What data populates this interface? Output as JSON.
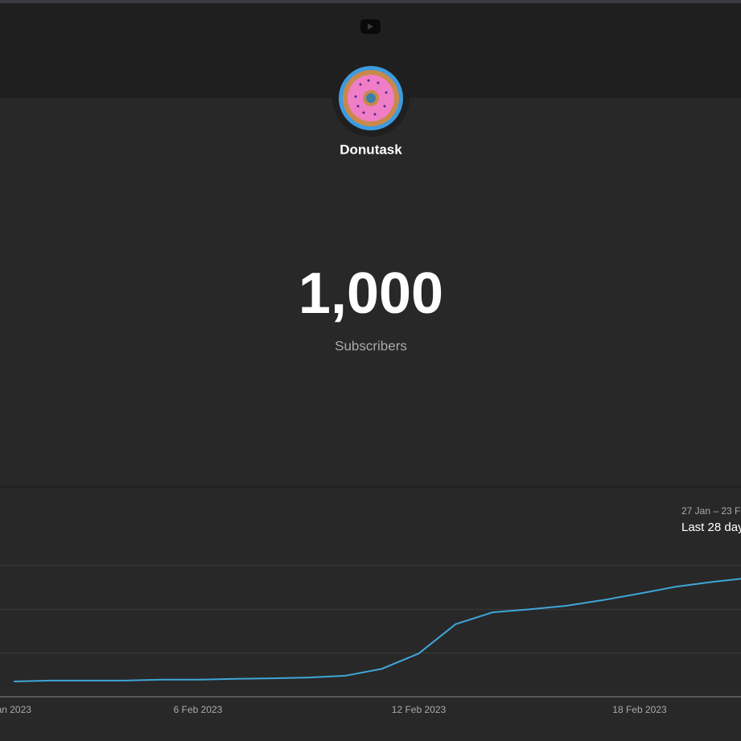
{
  "header": {
    "channel_name": "Donutask"
  },
  "stats": {
    "value": "1,000",
    "label": "Subscribers"
  },
  "chart_data": {
    "type": "line",
    "date_range": "27 Jan – 23 F",
    "period": "Last 28 day",
    "categories": [
      "an 2023",
      null,
      null,
      null,
      null,
      "6 Feb 2023",
      null,
      null,
      null,
      null,
      null,
      "12 Feb 2023",
      null,
      null,
      null,
      null,
      null,
      "18 Feb 2023",
      null,
      null,
      null
    ],
    "values": [
      0.35,
      0.37,
      0.37,
      0.37,
      0.39,
      0.39,
      0.41,
      0.42,
      0.44,
      0.48,
      0.64,
      0.99,
      1.66,
      1.93,
      2.0,
      2.08,
      2.21,
      2.36,
      2.52,
      2.63,
      2.72
    ],
    "color": "#3ea6d8",
    "ylim": [
      0,
      3
    ],
    "gridlines": [
      1,
      2,
      3
    ]
  }
}
